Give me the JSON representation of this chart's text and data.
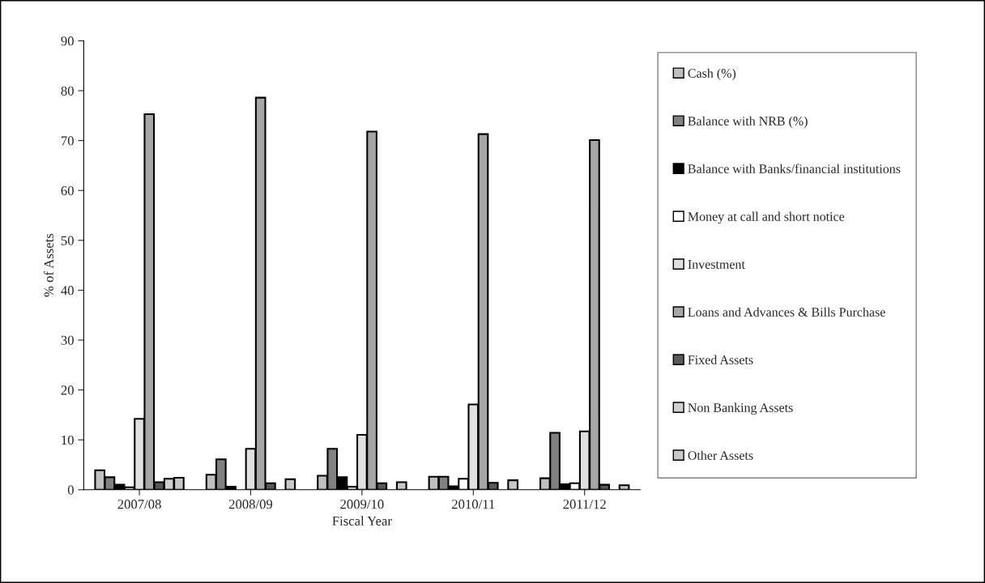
{
  "chart_data": {
    "type": "bar",
    "xlabel": "Fiscal Year",
    "ylabel": "% of Assets",
    "categories": [
      "2007/08",
      "2008/09",
      "2009/10",
      "2010/11",
      "2011/12"
    ],
    "series": [
      {
        "name": "Cash (%)",
        "color": "#bfbfbf",
        "values": [
          3.9,
          3.0,
          2.8,
          2.6,
          2.3
        ]
      },
      {
        "name": "Balance with NRB (%)",
        "color": "#808080",
        "values": [
          2.5,
          6.1,
          8.2,
          2.6,
          11.4
        ]
      },
      {
        "name": "Balance with Banks/financial institutions",
        "color": "#000000",
        "values": [
          1.0,
          0.6,
          2.5,
          0.7,
          1.1
        ]
      },
      {
        "name": "Money at call and short notice",
        "color": "#ffffff",
        "values": [
          0.5,
          null,
          0.6,
          2.2,
          1.3
        ]
      },
      {
        "name": "Investment",
        "color": "#e0e0e0",
        "values": [
          14.2,
          8.2,
          11.0,
          17.1,
          11.7
        ]
      },
      {
        "name": "Loans and Advances & Bills Purchase",
        "color": "#a6a6a6",
        "values": [
          75.3,
          78.6,
          71.8,
          71.3,
          70.1
        ]
      },
      {
        "name": "Fixed Assets",
        "color": "#595959",
        "values": [
          1.5,
          1.3,
          1.3,
          1.4,
          1.0
        ]
      },
      {
        "name": "Non Banking Assets",
        "color": "#d0d0d0",
        "values": [
          2.2,
          null,
          null,
          null,
          null
        ]
      },
      {
        "name": "Other Assets",
        "color": "#c8c8c8",
        "values": [
          2.4,
          2.1,
          1.5,
          1.9,
          0.9
        ]
      }
    ],
    "ylim": [
      0,
      90
    ],
    "yticks": [
      0,
      10,
      20,
      30,
      40,
      50,
      60,
      70,
      80,
      90
    ],
    "grid": false,
    "legend": "right"
  }
}
